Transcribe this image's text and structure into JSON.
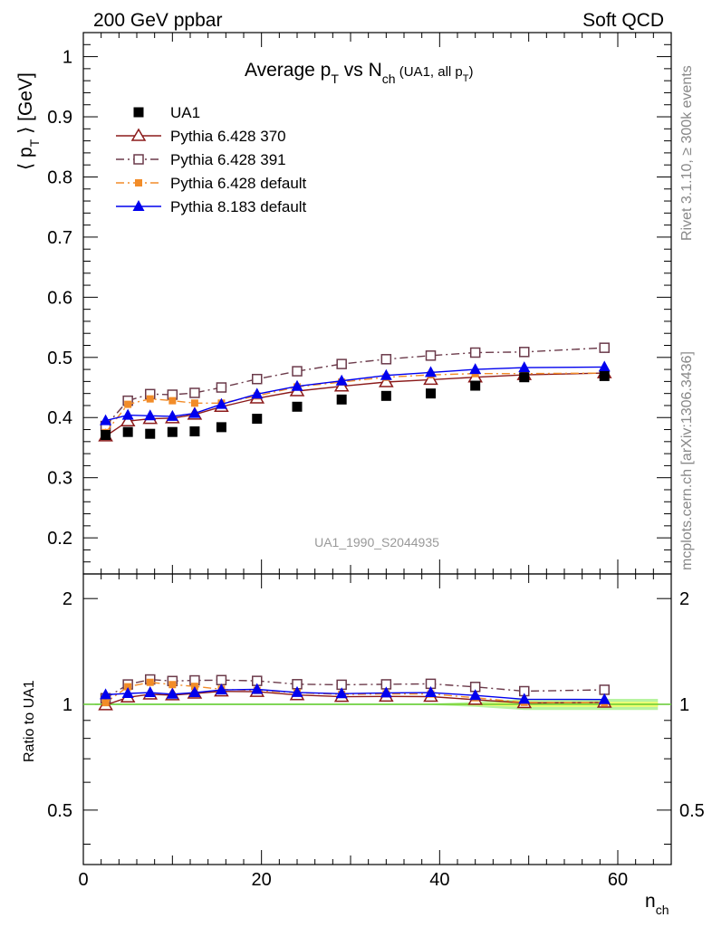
{
  "header": {
    "left": "200 GeV ppbar",
    "right": "Soft QCD"
  },
  "side": {
    "rivet": "Rivet 3.1.10, ≥ 300k events",
    "mcplots": "mcplots.cern.ch [arXiv:1306.3436]"
  },
  "colors": {
    "UA1": "#000000",
    "Pythia 6.428 370": "#8b1a1a",
    "Pythia 6.428 391": "#6b3a4a",
    "Pythia 6.428 default": "#f28c28",
    "Pythia 8.183 default": "#0000ee",
    "band_inner": "#ffff66",
    "band_outer": "#99ee77",
    "reference_line": "#66cc33"
  },
  "chart_data": {
    "type": "line",
    "title": "Average p_T vs N_ch (UA1, all p_T)",
    "title_parts": {
      "main_a": "Average p",
      "sub_a": "T",
      "main_b": " vs N",
      "sub_b": "ch",
      "small": " (UA1, all p",
      "small_sub": "T",
      "small_end": ")"
    },
    "analysis_id": "UA1_1990_S2044935",
    "xlabel": "n_ch",
    "xlabel_parts": {
      "main": "n",
      "sub": "ch"
    },
    "ylabel": "⟨ p_T ⟩ [GeV]",
    "ylabel_parts": {
      "a": "⟨ p",
      "sub": "T",
      "b": " ⟩ [GeV]"
    },
    "ratio_ylabel": "Ratio to UA1",
    "xlim": [
      0,
      66
    ],
    "ylim": [
      0.14,
      1.04
    ],
    "ratio_ylim": [
      0.35,
      2.35
    ],
    "x_ticks": [
      0,
      20,
      40,
      60
    ],
    "y_ticks": [
      0.2,
      0.3,
      0.4,
      0.5,
      0.6,
      0.7,
      0.8,
      0.9,
      1
    ],
    "ratio_y_ticks": [
      0.5,
      1,
      2
    ],
    "legend_position": "top-left",
    "x": [
      2.5,
      5,
      7.5,
      10,
      12.5,
      15.5,
      19.5,
      24,
      29,
      34,
      39,
      44,
      49.5,
      58.5
    ],
    "series": [
      {
        "name": "UA1",
        "marker": "filled-square",
        "line": "none",
        "values": [
          0.371,
          0.376,
          0.373,
          0.376,
          0.377,
          0.384,
          0.398,
          0.418,
          0.43,
          0.436,
          0.44,
          0.453,
          0.467,
          0.469
        ],
        "ratio": [
          1,
          1,
          1,
          1,
          1,
          1,
          1,
          1,
          1,
          1,
          1,
          1,
          1,
          1
        ]
      },
      {
        "name": "Pythia 6.428 370",
        "marker": "open-triangle",
        "line": "solid",
        "values": [
          0.369,
          0.394,
          0.398,
          0.399,
          0.405,
          0.418,
          0.432,
          0.444,
          0.452,
          0.459,
          0.463,
          0.467,
          0.471,
          0.474
        ],
        "ratio": [
          0.995,
          1.047,
          1.068,
          1.062,
          1.074,
          1.089,
          1.086,
          1.063,
          1.051,
          1.053,
          1.052,
          1.031,
          1.009,
          1.012
        ]
      },
      {
        "name": "Pythia 6.428 391",
        "marker": "open-square",
        "line": "dashdot",
        "values": [
          0.386,
          0.428,
          0.439,
          0.438,
          0.441,
          0.45,
          0.464,
          0.477,
          0.489,
          0.497,
          0.503,
          0.508,
          0.509,
          0.516
        ],
        "ratio": [
          1.041,
          1.139,
          1.177,
          1.165,
          1.17,
          1.172,
          1.166,
          1.141,
          1.137,
          1.14,
          1.144,
          1.121,
          1.09,
          1.1
        ]
      },
      {
        "name": "Pythia 6.428 default",
        "marker": "filled-square-small",
        "line": "dashdot",
        "values": [
          0.375,
          0.422,
          0.431,
          0.428,
          0.424,
          0.424,
          0.436,
          0.451,
          0.459,
          0.467,
          0.471,
          0.473,
          0.473,
          0.474
        ],
        "ratio": [
          1.011,
          1.122,
          1.155,
          1.138,
          1.125,
          1.104,
          1.095,
          1.079,
          1.067,
          1.071,
          1.07,
          1.044,
          1.013,
          1.011
        ]
      },
      {
        "name": "Pythia 8.183 default",
        "marker": "filled-triangle",
        "line": "solid",
        "values": [
          0.395,
          0.404,
          0.403,
          0.402,
          0.407,
          0.422,
          0.439,
          0.452,
          0.461,
          0.47,
          0.475,
          0.48,
          0.483,
          0.484
        ],
        "ratio": [
          1.065,
          1.074,
          1.08,
          1.069,
          1.08,
          1.099,
          1.103,
          1.081,
          1.072,
          1.078,
          1.08,
          1.06,
          1.034,
          1.032
        ]
      }
    ],
    "legend": [
      "UA1",
      "Pythia 6.428 370",
      "Pythia 6.428 391",
      "Pythia 6.428 default",
      "Pythia 8.183 default"
    ]
  }
}
